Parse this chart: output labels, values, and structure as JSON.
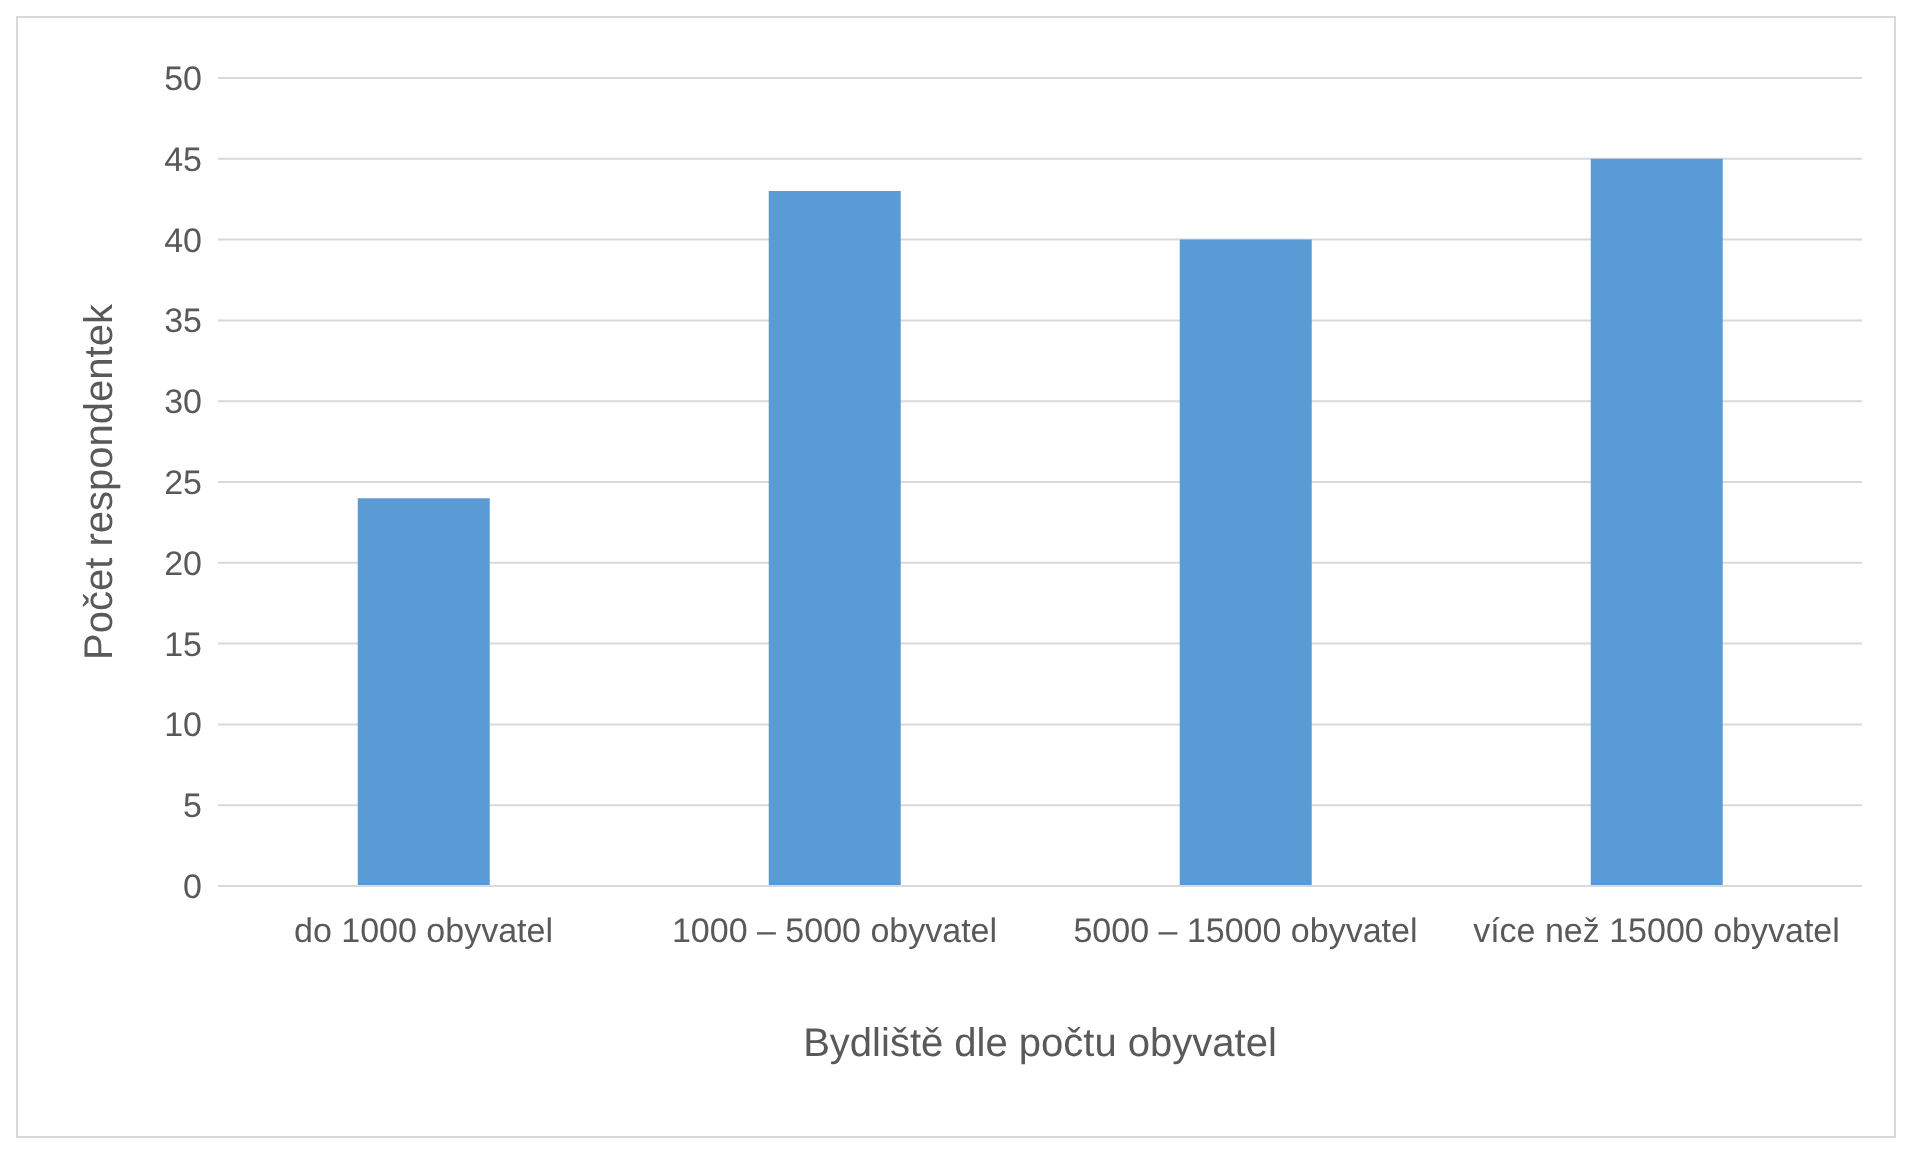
{
  "chart_data": {
    "type": "bar",
    "xlabel": "Bydliště dle počtu obyvatel",
    "ylabel": "Počet respondentek",
    "categories": [
      "do 1000 obyvatel",
      "1000 – 5000 obyvatel",
      "5000 – 15000 obyvatel",
      "více než 15000 obyvatel"
    ],
    "values": [
      24,
      43,
      40,
      45
    ],
    "color": "#5b9bd5",
    "ylim": [
      0,
      50
    ],
    "yticks": [
      0,
      5,
      10,
      15,
      20,
      25,
      30,
      35,
      40,
      45,
      50
    ],
    "grid": "y",
    "legend": false
  }
}
